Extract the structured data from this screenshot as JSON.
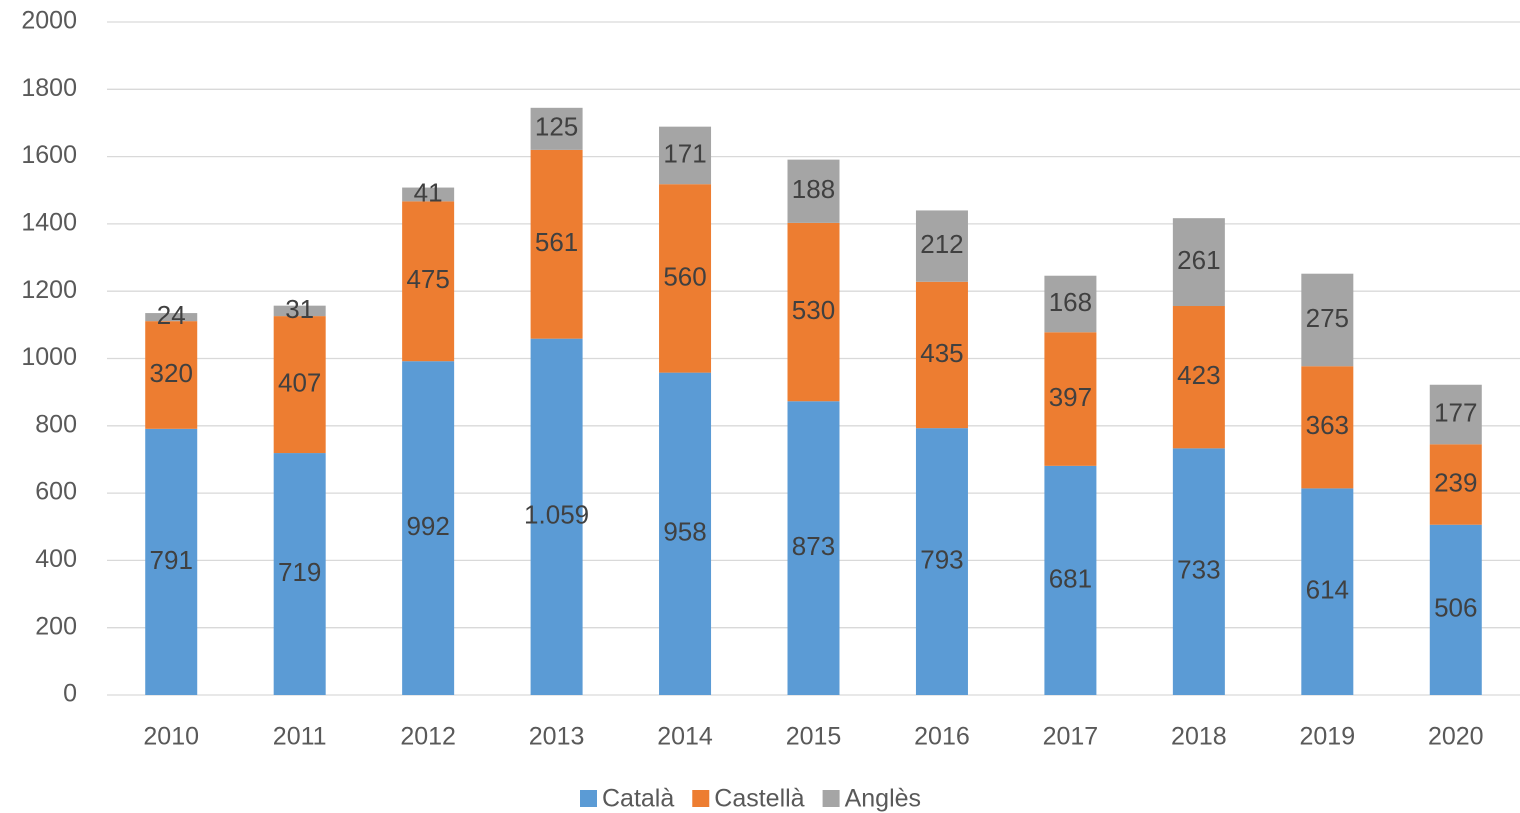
{
  "chart_data": {
    "type": "bar",
    "stacked": true,
    "categories": [
      "2010",
      "2011",
      "2012",
      "2013",
      "2014",
      "2015",
      "2016",
      "2017",
      "2018",
      "2019",
      "2020"
    ],
    "series": [
      {
        "name": "Català",
        "color": "#5b9bd5",
        "values": [
          791,
          719,
          992,
          1059,
          958,
          873,
          793,
          681,
          733,
          614,
          506
        ],
        "value_labels": [
          "791",
          "719",
          "992",
          "1.059",
          "958",
          "873",
          "793",
          "681",
          "733",
          "614",
          "506"
        ]
      },
      {
        "name": "Castellà",
        "color": "#ed7d31",
        "values": [
          320,
          407,
          475,
          561,
          560,
          530,
          435,
          397,
          423,
          363,
          239
        ]
      },
      {
        "name": "Anglès",
        "color": "#a5a5a5",
        "values": [
          24,
          31,
          41,
          125,
          171,
          188,
          212,
          168,
          261,
          275,
          177
        ]
      }
    ],
    "ylim": [
      0,
      2000
    ],
    "yticks": [
      0,
      200,
      400,
      600,
      800,
      1000,
      1200,
      1400,
      1600,
      1800,
      2000
    ],
    "grid": true,
    "legend": "bottom"
  }
}
